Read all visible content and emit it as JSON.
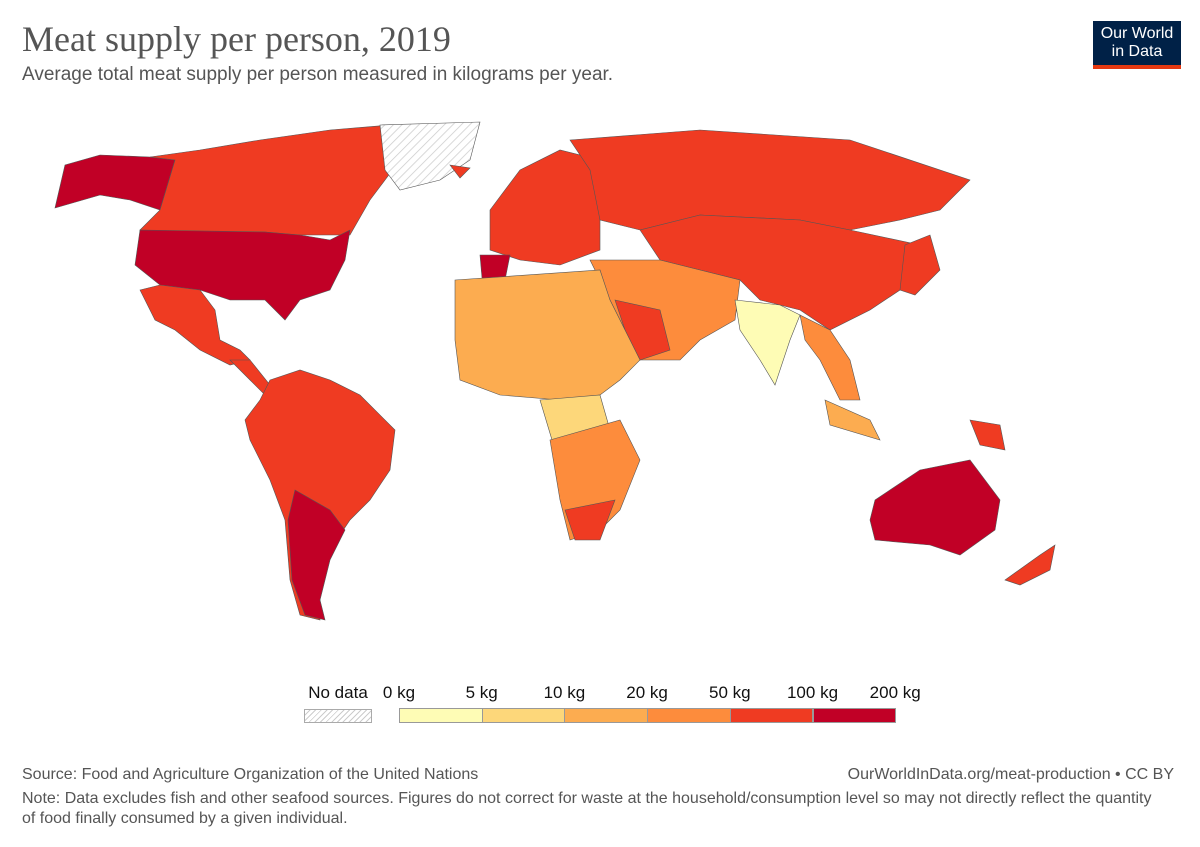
{
  "header": {
    "title": "Meat supply per person, 2019",
    "subtitle": "Average total meat supply per person measured in kilograms per year.",
    "logo": "Our World in Data"
  },
  "legend": {
    "no_data_label": "No data",
    "ticks": [
      "0 kg",
      "5 kg",
      "10 kg",
      "20 kg",
      "50 kg",
      "100 kg",
      "200 kg"
    ],
    "colors": [
      "#fefcb5",
      "#fdd77a",
      "#fcac50",
      "#fd8c3c",
      "#ef3b22",
      "#c10026"
    ],
    "no_data_color": "hatched"
  },
  "map": {
    "regions": [
      {
        "id": "alaska",
        "bin": 5
      },
      {
        "id": "canada",
        "bin": 4
      },
      {
        "id": "usa",
        "bin": 5
      },
      {
        "id": "mexico",
        "bin": 4
      },
      {
        "id": "central-america",
        "bin": 4
      },
      {
        "id": "south-america",
        "bin": 4
      },
      {
        "id": "argentina",
        "bin": 5
      },
      {
        "id": "greenland",
        "bin": null
      },
      {
        "id": "europe",
        "bin": 4
      },
      {
        "id": "spain",
        "bin": 5
      },
      {
        "id": "iceland",
        "bin": 4
      },
      {
        "id": "russia",
        "bin": 4
      },
      {
        "id": "china-central-asia",
        "bin": 4
      },
      {
        "id": "middle-east",
        "bin": 3
      },
      {
        "id": "saudi-arabia",
        "bin": 4
      },
      {
        "id": "india",
        "bin": 0
      },
      {
        "id": "southeast-asia",
        "bin": 3
      },
      {
        "id": "japan",
        "bin": 4
      },
      {
        "id": "north-africa-sahel",
        "bin": 2
      },
      {
        "id": "central-africa",
        "bin": 1
      },
      {
        "id": "southern-africa",
        "bin": 3
      },
      {
        "id": "south-africa",
        "bin": 4
      },
      {
        "id": "australia",
        "bin": 5
      },
      {
        "id": "new-zealand",
        "bin": 4
      },
      {
        "id": "indonesia",
        "bin": 2
      },
      {
        "id": "papua-new-guinea",
        "bin": 4
      }
    ]
  },
  "footer": {
    "source": "Source: Food and Agriculture Organization of the United Nations",
    "url": "OurWorldInData.org/meat-production • CC BY",
    "note": "Note: Data excludes fish and other seafood sources. Figures do not correct for waste at the household/consumption level so may not directly reflect the quantity of food finally consumed by a given individual."
  }
}
